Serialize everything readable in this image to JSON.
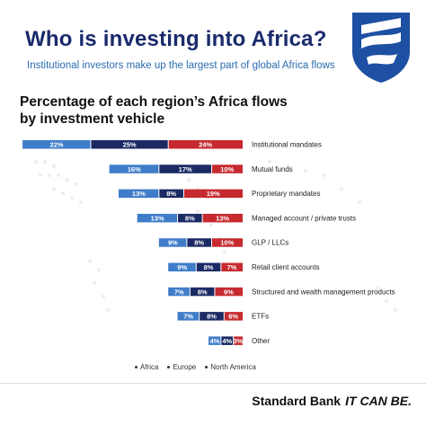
{
  "header": {
    "title": "Who is investing into Africa?",
    "subtitle": "Institutional investors make up the largest part of global Africa flows"
  },
  "chart_title": {
    "line1": "Percentage of each region’s Africa flows",
    "line2": "by investment vehicle"
  },
  "colors": {
    "africa": "#3f7dc9",
    "europe": "#1c2a64",
    "north_america": "#c62a2f",
    "title": "#1a2a6c",
    "subtitle": "#2b6cb0"
  },
  "chart_data": {
    "type": "bar",
    "orientation": "horizontal",
    "stacked": true,
    "title": "Percentage of each region’s Africa flows by investment vehicle",
    "categories": [
      "Institutional mandates",
      "Mutual funds",
      "Proprietary mandates",
      "Managed account / private trusts",
      "GLP / LLCs",
      "Retail client accounts",
      "Structured and wealth management products",
      "ETFs",
      "Other"
    ],
    "series": [
      {
        "name": "Africa",
        "color": "#3f7dc9",
        "values": [
          22,
          16,
          13,
          13,
          9,
          9,
          7,
          7,
          4
        ]
      },
      {
        "name": "Europe",
        "color": "#1c2a64",
        "values": [
          25,
          17,
          8,
          8,
          8,
          8,
          8,
          8,
          4
        ]
      },
      {
        "name": "North America",
        "color": "#c62a2f",
        "values": [
          24,
          10,
          19,
          13,
          10,
          7,
          9,
          6,
          3
        ]
      }
    ],
    "value_suffix": "%",
    "legend_position": "bottom",
    "grid": false
  },
  "legend": {
    "africa": "Africa",
    "europe": "Europe",
    "north_america": "North America"
  },
  "footer": {
    "brand": "Standard Bank",
    "slogan": "IT CAN BE."
  }
}
